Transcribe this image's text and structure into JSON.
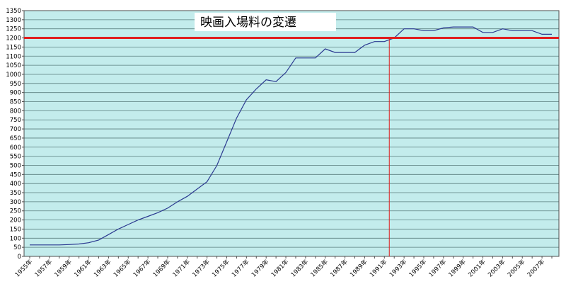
{
  "chart_data": {
    "type": "line",
    "title": "映画入場料の変遷",
    "xlabel": "",
    "ylabel": "",
    "ylim": [
      0,
      1350
    ],
    "ytick_step": 50,
    "grid": true,
    "legend": "none",
    "colors": {
      "plot_bg": "#c3ecec",
      "grid": "#5a7e7e",
      "line": "#2b3990",
      "reference": "#e01e1e"
    },
    "x": [
      1955,
      1956,
      1957,
      1958,
      1959,
      1960,
      1961,
      1962,
      1963,
      1964,
      1965,
      1966,
      1967,
      1968,
      1969,
      1970,
      1971,
      1972,
      1973,
      1974,
      1975,
      1976,
      1977,
      1978,
      1979,
      1980,
      1981,
      1982,
      1983,
      1984,
      1985,
      1986,
      1987,
      1988,
      1989,
      1990,
      1991,
      1992,
      1993,
      1994,
      1995,
      1996,
      1997,
      1998,
      1999,
      2000,
      2001,
      2002,
      2003,
      2004,
      2005,
      2006,
      2007,
      2008
    ],
    "tick_labels": [
      "1955年",
      "1957年",
      "1959年",
      "1961年",
      "1963年",
      "1965年",
      "1967年",
      "1969年",
      "1971年",
      "1973年",
      "1975年",
      "1977年",
      "1979年",
      "1981年",
      "1983年",
      "1985年",
      "1987年",
      "1989年",
      "1991年",
      "1993年",
      "1995年",
      "1997年",
      "1999年",
      "2001年",
      "2003年",
      "2005年",
      "2007年"
    ],
    "series": [
      {
        "values": [
          63,
          63,
          63,
          63,
          65,
          68,
          75,
          90,
          120,
          150,
          175,
          200,
          220,
          240,
          265,
          300,
          330,
          370,
          410,
          500,
          630,
          760,
          860,
          920,
          970,
          960,
          1010,
          1090,
          1090,
          1090,
          1140,
          1120,
          1120,
          1120,
          1160,
          1180,
          1180,
          1200,
          1250,
          1250,
          1240,
          1240,
          1255,
          1260,
          1260,
          1260,
          1230,
          1230,
          1250,
          1240,
          1240,
          1240,
          1220,
          1220
        ]
      }
    ],
    "reference_lines": {
      "horizontal_y": 1200,
      "vertical_x": 1991.5
    }
  }
}
